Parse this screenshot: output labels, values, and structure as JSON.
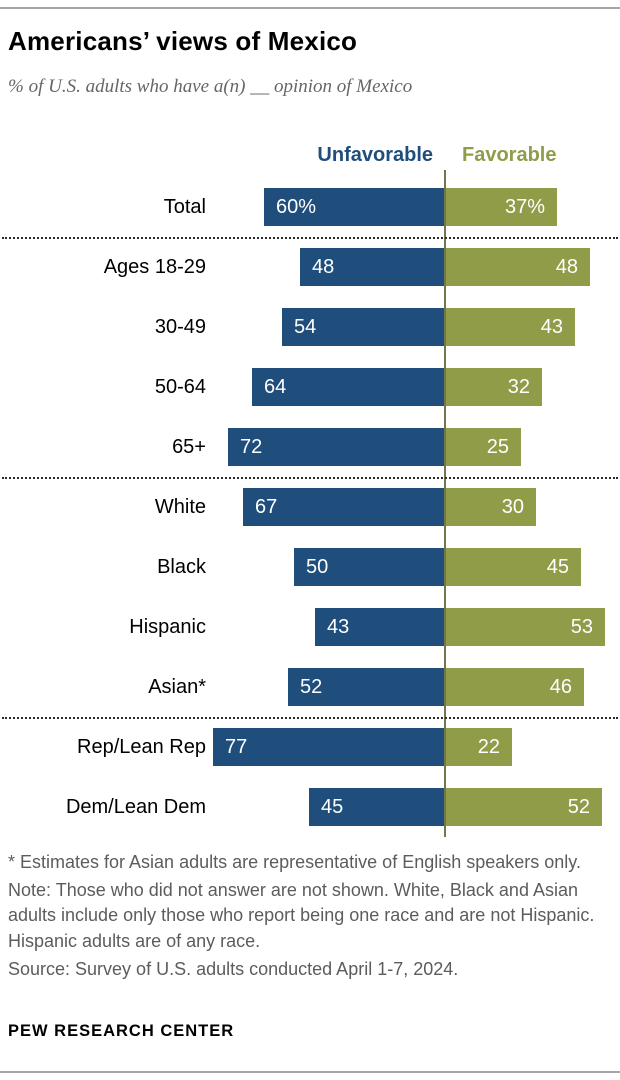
{
  "title": "Americans’ views of Mexico",
  "subtitle": "% of U.S. adults who have a(n) __ opinion of Mexico",
  "legend": {
    "unfavorable": "Unfavorable",
    "favorable": "Favorable"
  },
  "colors": {
    "unfavorable": "#1f4e7c",
    "favorable": "#919c49",
    "axis_line": "#75754d",
    "note_text": "#5c5c5e"
  },
  "chart_data": {
    "type": "bar",
    "subtype": "diverging-horizontal",
    "title": "Americans’ views of Mexico",
    "categories": [
      "Total",
      "Ages 18-29",
      "30-49",
      "50-64",
      "65+",
      "White",
      "Black",
      "Hispanic",
      "Asian*",
      "Rep/Lean Rep",
      "Dem/Lean Dem"
    ],
    "series": [
      {
        "name": "Unfavorable",
        "side": "left",
        "color": "#1f4e7c",
        "values": [
          60,
          48,
          54,
          64,
          72,
          67,
          50,
          43,
          52,
          77,
          45
        ],
        "labels": [
          "60%",
          "48",
          "54",
          "64",
          "72",
          "67",
          "50",
          "43",
          "52",
          "77",
          "45"
        ]
      },
      {
        "name": "Favorable",
        "side": "right",
        "color": "#919c49",
        "values": [
          37,
          48,
          43,
          32,
          25,
          30,
          45,
          53,
          46,
          22,
          52
        ],
        "labels": [
          "37%",
          "48",
          "43",
          "32",
          "25",
          "30",
          "45",
          "53",
          "46",
          "22",
          "52"
        ]
      }
    ],
    "group_separators_after_row": [
      0,
      4,
      8
    ],
    "xlim": [
      0,
      100
    ],
    "legend_position": "top",
    "grid": false
  },
  "notes": {
    "asterisk": "* Estimates for Asian adults are representative of English speakers only.",
    "general": "Note: Those who did not answer are not shown. White, Black and Asian adults include only those who report being one race and are not Hispanic. Hispanic adults are of any race.",
    "source": "Source: Survey of U.S. adults conducted April 1-7, 2024."
  },
  "brand": "PEW RESEARCH CENTER"
}
